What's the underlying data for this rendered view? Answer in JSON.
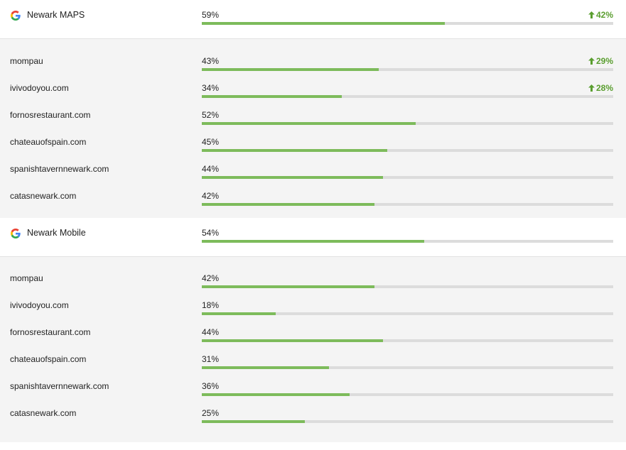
{
  "colors": {
    "bar_fill": "#7dbb5b",
    "bar_track": "#dcdcdc",
    "positive_change": "#5a9e2f",
    "panel_bg": "#f4f4f4"
  },
  "sections": [
    {
      "title": "Newark MAPS",
      "icon": "google-g-icon",
      "percent_label": "59%",
      "percent": 59,
      "change": "42%",
      "rows": [
        {
          "name": "mompau",
          "percent_label": "43%",
          "percent": 43,
          "change": "29%"
        },
        {
          "name": "ivivodoyou.com",
          "percent_label": "34%",
          "percent": 34,
          "change": "28%"
        },
        {
          "name": "fornosrestaurant.com",
          "percent_label": "52%",
          "percent": 52
        },
        {
          "name": "chateauofspain.com",
          "percent_label": "45%",
          "percent": 45
        },
        {
          "name": "spanishtavernnewark.com",
          "percent_label": "44%",
          "percent": 44
        },
        {
          "name": "catasnewark.com",
          "percent_label": "42%",
          "percent": 42
        }
      ]
    },
    {
      "title": "Newark Mobile",
      "icon": "google-g-icon",
      "percent_label": "54%",
      "percent": 54,
      "rows": [
        {
          "name": "mompau",
          "percent_label": "42%",
          "percent": 42
        },
        {
          "name": "ivivodoyou.com",
          "percent_label": "18%",
          "percent": 18
        },
        {
          "name": "fornosrestaurant.com",
          "percent_label": "44%",
          "percent": 44
        },
        {
          "name": "chateauofspain.com",
          "percent_label": "31%",
          "percent": 31
        },
        {
          "name": "spanishtavernnewark.com",
          "percent_label": "36%",
          "percent": 36
        },
        {
          "name": "catasnewark.com",
          "percent_label": "25%",
          "percent": 25
        }
      ]
    }
  ]
}
